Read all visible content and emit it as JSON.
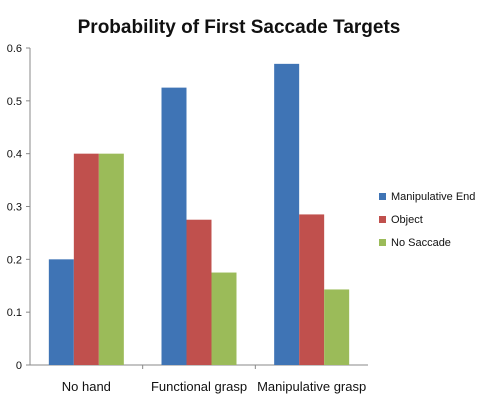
{
  "chart_data": {
    "type": "bar",
    "title": "Probability of First Saccade Targets",
    "xlabel": "",
    "ylabel": "",
    "categories": [
      "No hand",
      "Functional grasp",
      "Manipulative grasp"
    ],
    "series": [
      {
        "name": "Manipulative End",
        "color": "#3f74b5",
        "values": [
          0.2,
          0.525,
          0.57
        ]
      },
      {
        "name": "Object",
        "color": "#c0504d",
        "values": [
          0.4,
          0.275,
          0.285
        ]
      },
      {
        "name": "No Saccade",
        "color": "#9bbb59",
        "values": [
          0.4,
          0.175,
          0.143
        ]
      }
    ],
    "ylim": [
      0,
      0.6
    ],
    "yticks": [
      "0",
      "0.1",
      "0.2",
      "0.3",
      "0.4",
      "0.5",
      "0.6"
    ],
    "grid": false,
    "legend_position": "right"
  }
}
